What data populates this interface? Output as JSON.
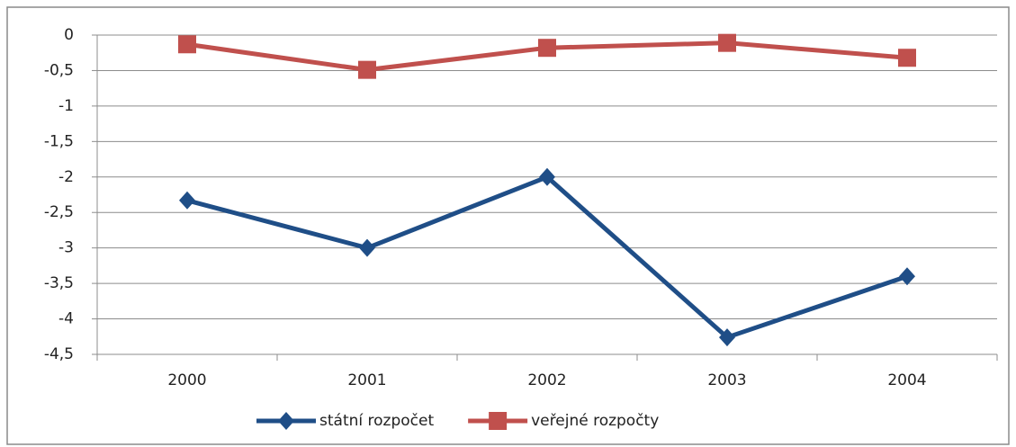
{
  "chart_data": {
    "type": "line",
    "categories": [
      "2000",
      "2001",
      "2002",
      "2003",
      "2004"
    ],
    "series": [
      {
        "name": "státní rozpočet",
        "color": "#1f4e87",
        "marker": "diamond",
        "values": [
          -2.33,
          -3.0,
          -2.0,
          -4.26,
          -3.4
        ]
      },
      {
        "name": "veřejné rozpočty",
        "color": "#c0504d",
        "marker": "square",
        "values": [
          -0.13,
          -0.49,
          -0.18,
          -0.11,
          -0.32
        ]
      }
    ],
    "ylim": [
      -4.5,
      0
    ],
    "yticks": [
      0,
      {
        "value": -0.5,
        "label": "-0,5"
      },
      -1,
      {
        "value": -1.5,
        "label": "-1,5"
      },
      -2,
      {
        "value": -2.5,
        "label": "-2,5"
      },
      -3,
      {
        "value": -3.5,
        "label": "-3,5"
      },
      -4,
      {
        "value": -4.5,
        "label": "-4,5"
      }
    ],
    "grid": true,
    "legend": "bottom"
  }
}
